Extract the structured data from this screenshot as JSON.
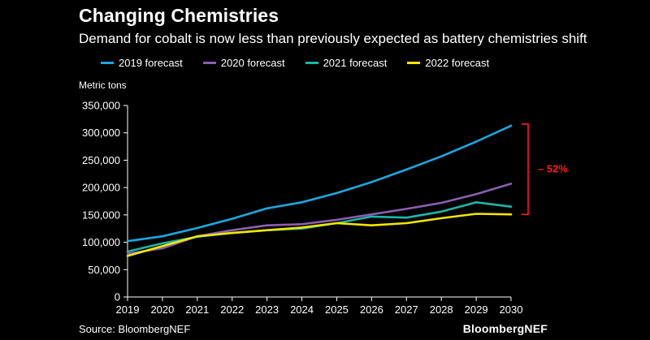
{
  "title": "Changing Chemistries",
  "subtitle": "Demand for cobalt is now less than previously expected as battery chemistries shift",
  "source": "Source: BloombergNEF",
  "brand": "BloombergNEF",
  "colors": {
    "background": "#000000",
    "text": "#ffffff",
    "axis": "#ffffff",
    "annotation": "#ff1a1a"
  },
  "chart_data": {
    "type": "line",
    "title": "Changing Chemistries",
    "ylabel": "Metric tons",
    "xlabel": "",
    "x": [
      2019,
      2020,
      2021,
      2022,
      2023,
      2024,
      2025,
      2026,
      2027,
      2028,
      2029,
      2030
    ],
    "xtick_labels": [
      "2019",
      "2020",
      "2021",
      "2022",
      "2023",
      "2024",
      "2025",
      "2026",
      "2027",
      "2028",
      "2029",
      "2030"
    ],
    "ylim": [
      0,
      350000
    ],
    "ytick_values": [
      0,
      50000,
      100000,
      150000,
      200000,
      250000,
      300000,
      350000
    ],
    "ytick_labels": [
      "0",
      "50,000",
      "100,000",
      "150,000",
      "200,000",
      "250,000",
      "300,000",
      "350,000"
    ],
    "grid": false,
    "legend_position": "top",
    "series": [
      {
        "name": "2019 forecast",
        "color": "#1ba8e0",
        "values": [
          102000,
          111000,
          126000,
          143000,
          162000,
          173000,
          190000,
          210000,
          233000,
          257000,
          284000,
          313000
        ]
      },
      {
        "name": "2020 forecast",
        "color": "#8a5fb0",
        "values": [
          79000,
          89000,
          111000,
          122000,
          131000,
          133000,
          141000,
          151000,
          161000,
          172000,
          188000,
          207000
        ]
      },
      {
        "name": "2021 forecast",
        "color": "#1db5a8",
        "values": [
          83000,
          98000,
          110000,
          117000,
          122000,
          125000,
          135000,
          147000,
          145000,
          156000,
          173000,
          165000
        ]
      },
      {
        "name": "2022 forecast",
        "color": "#f2e600",
        "values": [
          75000,
          93000,
          111000,
          117000,
          122000,
          127000,
          135000,
          131000,
          135000,
          144000,
          152000,
          151000
        ]
      }
    ],
    "annotation": {
      "text": "– 52%",
      "x": 2030,
      "from_value": 313000,
      "to_value": 151000
    }
  }
}
